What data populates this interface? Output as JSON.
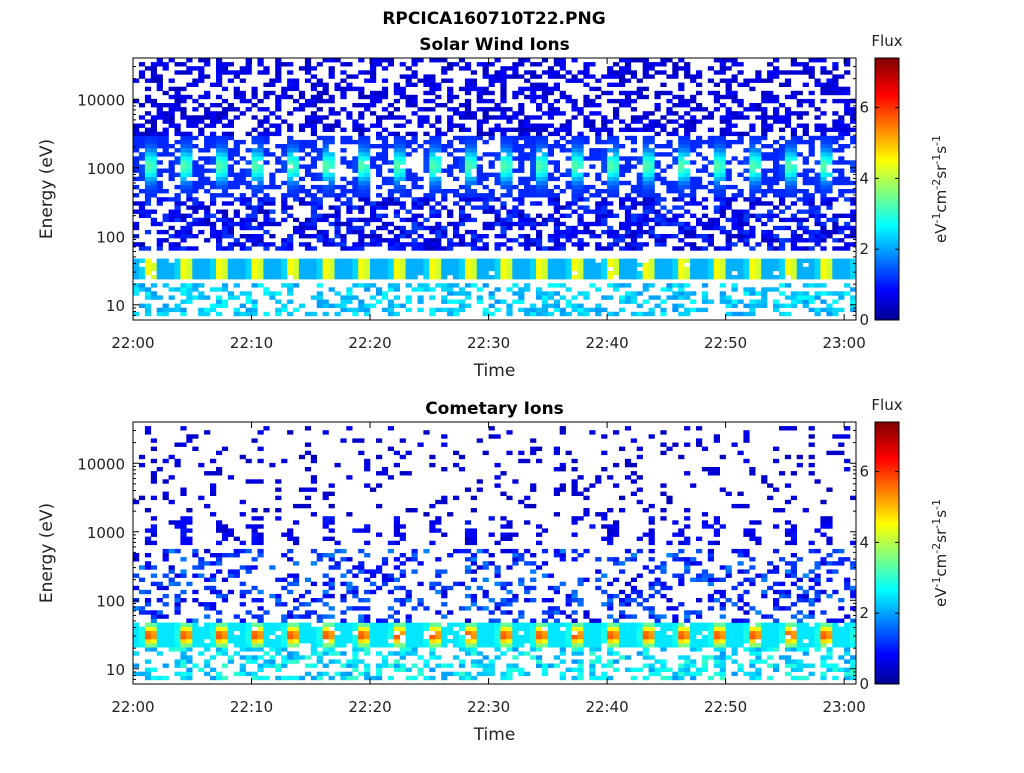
{
  "figure_title": "RPCICA160710T22.PNG",
  "chart_data": [
    {
      "type": "heatmap",
      "title": "Solar Wind Ions",
      "xlabel": "Time",
      "ylabel": "Energy (eV)",
      "y_scale": "log",
      "ylim": [
        6,
        40000
      ],
      "xlim": [
        "22:00",
        "23:01"
      ],
      "x_ticks": [
        "22:00",
        "22:10",
        "22:20",
        "22:30",
        "22:40",
        "22:50",
        "23:00"
      ],
      "y_ticks": [
        "10",
        "100",
        "1000",
        "10000"
      ],
      "colorbar": {
        "title": "Flux",
        "label": "eV-1cm-2sr-1s-1",
        "range": [
          0,
          7.4
        ],
        "ticks": [
          "0",
          "2",
          "4",
          "6"
        ],
        "colormap": "jet"
      },
      "features": [
        {
          "band": "solar wind peak",
          "energy_eV": 1000,
          "peak_flux": 3.5,
          "periodic": true,
          "period_minutes": 3
        },
        {
          "band": "low energy band",
          "energy_eV": 30,
          "peak_flux": 4.8,
          "periodic": true,
          "period_minutes": 3
        },
        {
          "band": "high energy background",
          "energy_range_eV": [
            3000,
            30000
          ],
          "flux": 0.5
        }
      ]
    },
    {
      "type": "heatmap",
      "title": "Cometary Ions",
      "xlabel": "Time",
      "ylabel": "Energy (eV)",
      "y_scale": "log",
      "ylim": [
        6,
        40000
      ],
      "xlim": [
        "22:00",
        "23:01"
      ],
      "x_ticks": [
        "22:00",
        "22:10",
        "22:20",
        "22:30",
        "22:40",
        "22:50",
        "23:00"
      ],
      "y_ticks": [
        "10",
        "100",
        "1000",
        "10000"
      ],
      "colorbar": {
        "title": "Flux",
        "label": "eV-1cm-2sr-1s-1",
        "range": [
          0,
          7.4
        ],
        "ticks": [
          "0",
          "2",
          "4",
          "6"
        ],
        "colormap": "jet"
      },
      "features": [
        {
          "band": "cometary ion peak",
          "energy_eV": 30,
          "peak_flux": 6.2,
          "periodic": true,
          "period_minutes": 3
        },
        {
          "band": "sparse keV ions",
          "energy_eV": 1000,
          "flux": 0.8
        },
        {
          "band": "sparse background",
          "energy_range_eV": [
            40,
            30000
          ],
          "flux": 0.5
        }
      ]
    }
  ]
}
